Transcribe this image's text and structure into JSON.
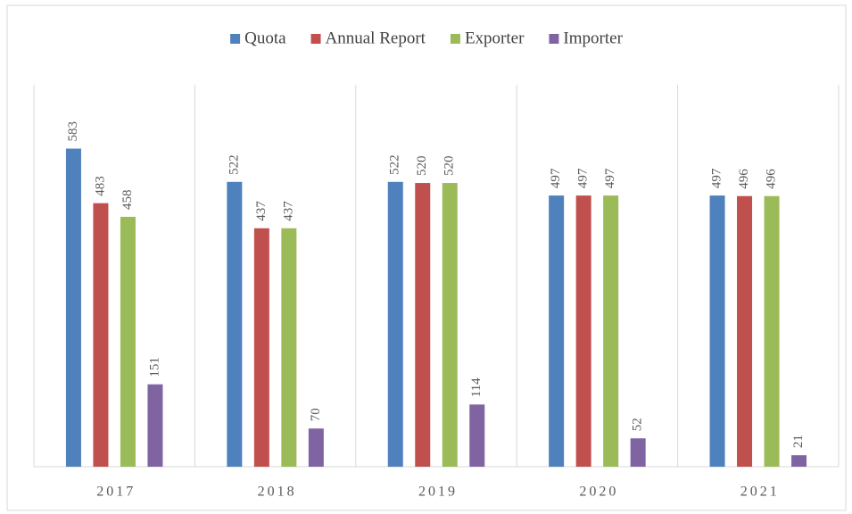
{
  "chart_data": {
    "type": "bar",
    "categories": [
      "2017",
      "2018",
      "2019",
      "2020",
      "2021"
    ],
    "series": [
      {
        "name": "Quota",
        "color": "#4f81bd",
        "values": [
          583,
          522,
          522,
          497,
          497
        ]
      },
      {
        "name": "Annual Report",
        "color": "#c0504d",
        "values": [
          483,
          437,
          520,
          497,
          496
        ]
      },
      {
        "name": "Exporter",
        "color": "#9bbb59",
        "values": [
          458,
          437,
          520,
          497,
          496
        ]
      },
      {
        "name": "Importer",
        "color": "#8064a2",
        "values": [
          151,
          70,
          114,
          52,
          21
        ]
      }
    ],
    "ylim": [
      0,
      700
    ],
    "legend": "top"
  }
}
